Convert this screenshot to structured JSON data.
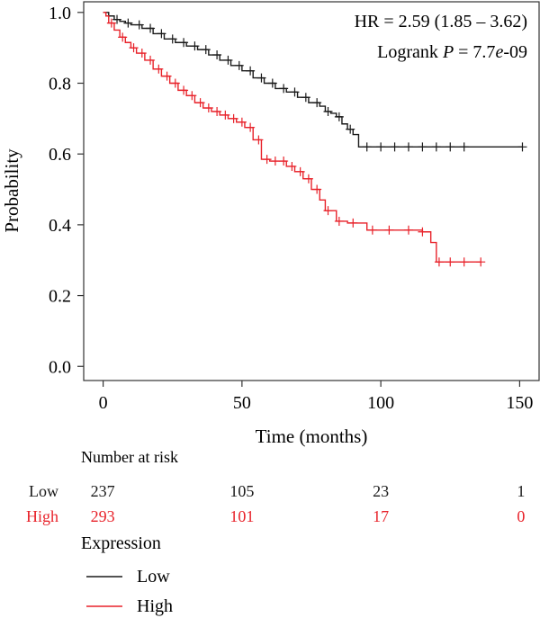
{
  "chart_data": {
    "type": "line",
    "subtype": "kaplan-meier",
    "title": "",
    "xlabel": "Time (months)",
    "ylabel": "Probability",
    "xlim": [
      -7,
      157
    ],
    "ylim": [
      -0.04,
      1.03
    ],
    "x_ticks": [
      0,
      50,
      100,
      150
    ],
    "y_ticks": [
      "0.0",
      "0.2",
      "0.4",
      "0.6",
      "0.8",
      "1.0"
    ],
    "grid": false,
    "annotations": {
      "hr_text": "HR = 2.59 (1.85 – 3.62)",
      "logrank_prefix": "Logrank ",
      "logrank_p": "P",
      "logrank_eq": " = 7.7",
      "logrank_e": "e",
      "logrank_exp": "-09"
    },
    "series": [
      {
        "name": "Low",
        "color": "#1a1a1a",
        "x": [
          0,
          2,
          4,
          6,
          8,
          10,
          14,
          18,
          22,
          26,
          30,
          34,
          38,
          42,
          46,
          50,
          54,
          58,
          62,
          66,
          70,
          74,
          78,
          80,
          82,
          84,
          86,
          88,
          90,
          92,
          96,
          100,
          110,
          120,
          130,
          151
        ],
        "y": [
          1.0,
          0.99,
          0.98,
          0.975,
          0.97,
          0.965,
          0.955,
          0.94,
          0.925,
          0.915,
          0.905,
          0.895,
          0.88,
          0.865,
          0.85,
          0.835,
          0.815,
          0.8,
          0.785,
          0.775,
          0.76,
          0.745,
          0.735,
          0.72,
          0.715,
          0.705,
          0.685,
          0.67,
          0.655,
          0.62,
          0.62,
          0.62,
          0.62,
          0.62,
          0.62,
          0.62
        ],
        "censored_x": [
          5,
          9,
          13,
          17,
          21,
          25,
          29,
          33,
          37,
          41,
          45,
          49,
          53,
          57,
          61,
          65,
          69,
          73,
          77,
          81,
          85,
          89,
          95,
          100,
          105,
          110,
          115,
          120,
          125,
          130,
          151
        ]
      },
      {
        "name": "High",
        "color": "#e8222a",
        "x": [
          0,
          1,
          2,
          4,
          6,
          8,
          10,
          12,
          15,
          18,
          21,
          24,
          27,
          30,
          33,
          36,
          39,
          42,
          45,
          48,
          51,
          54,
          57,
          60,
          63,
          66,
          69,
          72,
          75,
          78,
          80,
          84,
          88,
          95,
          105,
          115,
          118,
          120,
          125,
          130,
          136
        ],
        "y": [
          1.0,
          0.99,
          0.97,
          0.95,
          0.93,
          0.915,
          0.9,
          0.885,
          0.865,
          0.84,
          0.82,
          0.8,
          0.78,
          0.765,
          0.745,
          0.73,
          0.72,
          0.71,
          0.7,
          0.69,
          0.675,
          0.64,
          0.585,
          0.58,
          0.58,
          0.565,
          0.55,
          0.53,
          0.5,
          0.47,
          0.44,
          0.41,
          0.405,
          0.385,
          0.385,
          0.38,
          0.35,
          0.295,
          0.295,
          0.295,
          0.295
        ],
        "censored_x": [
          3,
          7,
          11,
          14,
          17,
          20,
          23,
          26,
          29,
          32,
          35,
          38,
          41,
          44,
          47,
          50,
          53,
          56,
          59,
          62,
          65,
          68,
          71,
          74,
          77,
          81,
          85,
          90,
          97,
          103,
          110,
          115,
          121,
          125,
          130,
          136
        ]
      }
    ],
    "risk_table": {
      "header": "Number at risk",
      "x_positions": [
        0,
        50,
        100,
        150
      ],
      "rows": [
        {
          "label": "Low",
          "color": "#1a1a1a",
          "values": [
            "237",
            "105",
            "23",
            "1"
          ]
        },
        {
          "label": "High",
          "color": "#e8222a",
          "values": [
            "293",
            "101",
            "17",
            "0"
          ]
        }
      ]
    },
    "legend": {
      "title": "Expression",
      "placement": "bottom-left",
      "entries": [
        {
          "label": "Low",
          "color": "#1a1a1a"
        },
        {
          "label": "High",
          "color": "#e8222a"
        }
      ]
    }
  }
}
